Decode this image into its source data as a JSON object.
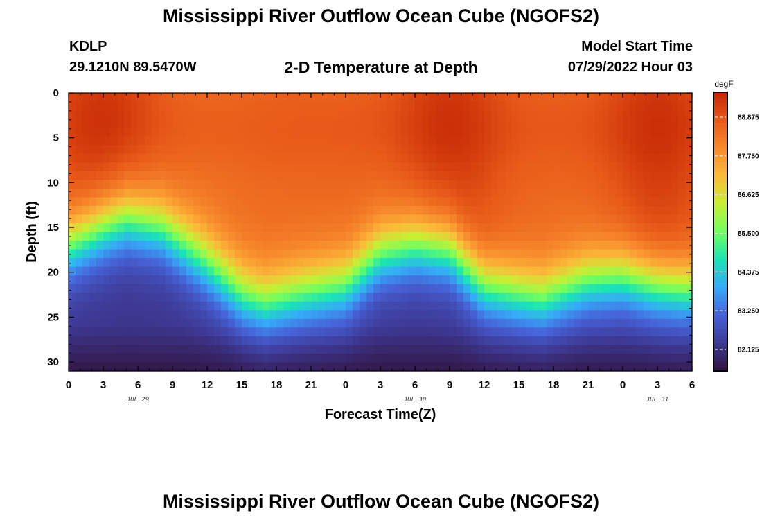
{
  "header": {
    "title": "Mississippi River Outflow Ocean Cube (NGOFS2)",
    "station": "KDLP",
    "latlon": "29.1210N  89.5470W",
    "subtitle": "2-D Temperature at Depth",
    "model_start_label": "Model Start Time",
    "model_start_value": "07/29/2022 Hour 03"
  },
  "footer": {
    "title": "Mississippi River Outflow Ocean Cube (NGOFS2)"
  },
  "chart_data": {
    "type": "heatmap",
    "xlabel": "Forecast Time(Z)",
    "ylabel": "Depth (ft)",
    "x_tick_labels": [
      "0",
      "3",
      "6",
      "9",
      "12",
      "15",
      "18",
      "21",
      "0",
      "3",
      "6",
      "9",
      "12",
      "15",
      "18",
      "21",
      "0",
      "3",
      "6"
    ],
    "date_labels": [
      {
        "label": "JUL 29",
        "at_tick": 2
      },
      {
        "label": "JUL 30",
        "at_tick": 10
      },
      {
        "label": "JUL 31",
        "at_tick": 17
      }
    ],
    "y_ticks": [
      0,
      5,
      10,
      15,
      20,
      25,
      30
    ],
    "ylim": [
      0,
      31
    ],
    "y_inverted": true,
    "x_range_hours": [
      0,
      54
    ],
    "colorbar": {
      "unit": "degF",
      "range": [
        81.5,
        89.6
      ],
      "ticks": [
        88.875,
        87.75,
        86.625,
        85.5,
        84.375,
        83.25,
        82.125
      ],
      "tick_labels": [
        "88.875",
        "87.750",
        "86.625",
        "85.500",
        "84.375",
        "83.250",
        "82.125"
      ],
      "colors": [
        "#30123b",
        "#3e3994",
        "#4662d7",
        "#36aaf9",
        "#1ae4b6",
        "#72fe5e",
        "#c8ef34",
        "#fabb39",
        "#f7892c",
        "#e85a19",
        "#c42503"
      ]
    },
    "thermocline_depth_ft": {
      "hours": [
        0,
        3,
        5,
        8,
        12,
        15,
        17,
        20,
        24,
        27,
        30,
        33,
        36,
        39,
        41,
        43,
        45,
        48,
        51,
        54
      ],
      "values": [
        17,
        15,
        14,
        15,
        19,
        22.5,
        23.5,
        22.5,
        21.5,
        18,
        17,
        17.5,
        21.5,
        22.5,
        23,
        22,
        21,
        20.5,
        21.5,
        22
      ]
    },
    "surface_warm_core_hours": [
      3,
      33,
      51
    ]
  }
}
